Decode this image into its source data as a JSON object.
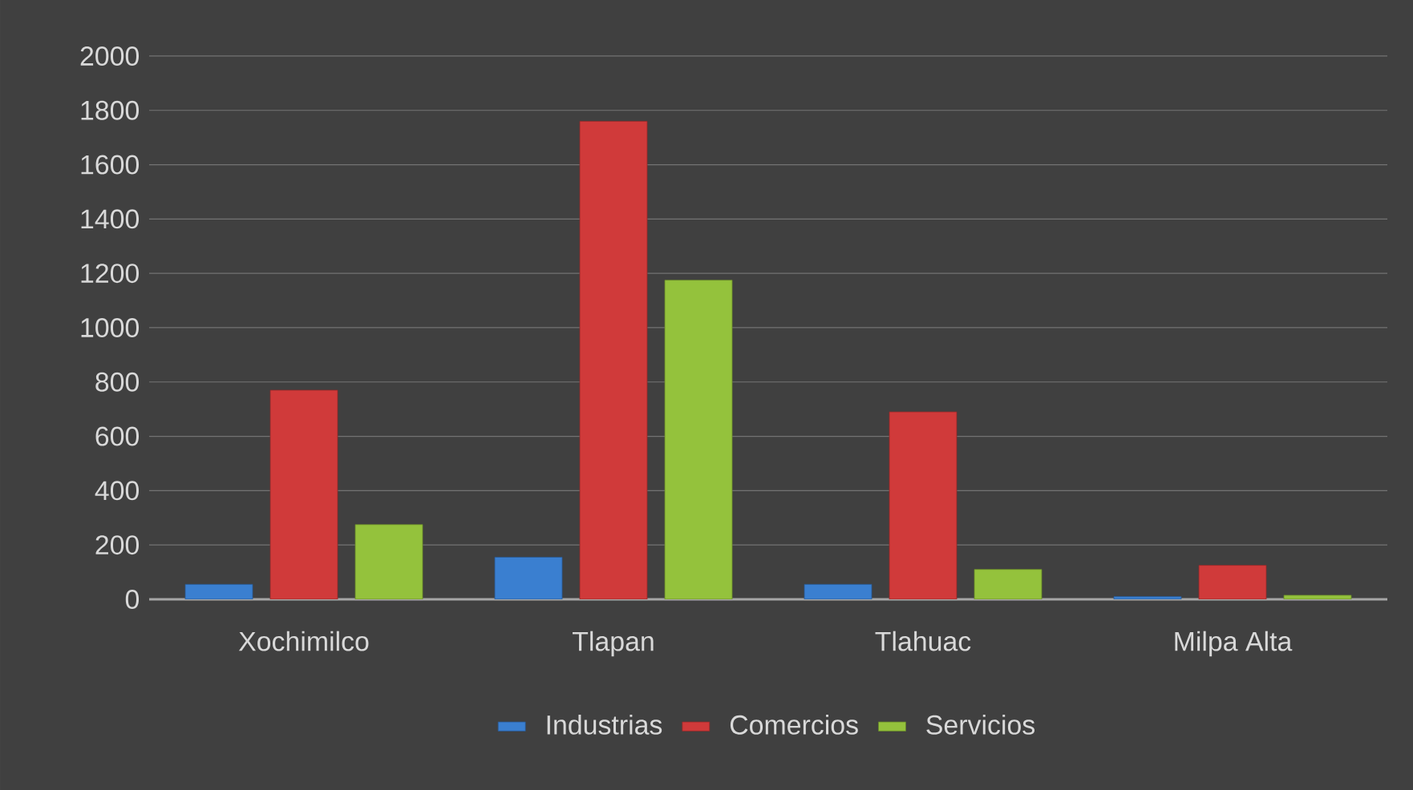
{
  "chart_data": {
    "type": "bar",
    "categories": [
      "Xochimilco",
      "Tlapan",
      "Tlahuac",
      "Milpa Alta"
    ],
    "series": [
      {
        "name": "Industrias",
        "color": "#3a7fd0",
        "values": [
          55,
          155,
          55,
          10
        ]
      },
      {
        "name": "Comercios",
        "color": "#d03a3a",
        "values": [
          770,
          1760,
          690,
          125
        ]
      },
      {
        "name": "Servicios",
        "color": "#94c23c",
        "values": [
          275,
          1175,
          110,
          15
        ]
      }
    ],
    "ylim": [
      0,
      2000
    ],
    "yticks": [
      0,
      200,
      400,
      600,
      800,
      1000,
      1200,
      1400,
      1600,
      1800,
      2000
    ],
    "grid": "y",
    "legend": "bottom"
  }
}
